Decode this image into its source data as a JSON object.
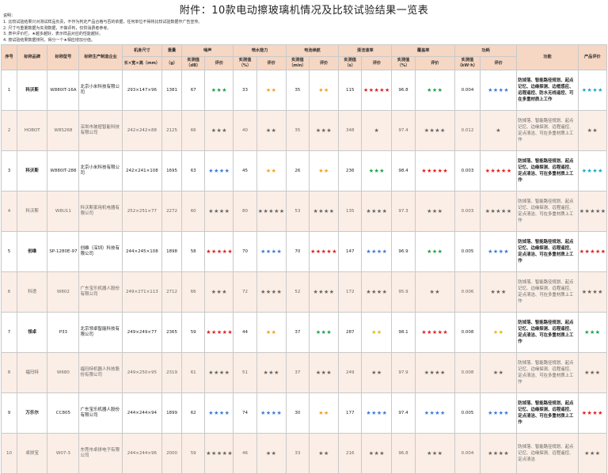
{
  "title": "附件：10款电动擦玻璃机情况及比较试验结果一览表",
  "notes": [
    "说明：",
    "1. 比较试验结果只对测试样品负责，不作为判定产品合格与否的依据，任何单位不得将比较试验数据作广告宣传。",
    "2. 尺寸与重量数据为实测数据，不做评判，仅供消费者参考。",
    "3. 表中评价栏，★越多越好，表示样品对应的性能越好。",
    "4. 按试验结果数据排列，得分一个★相应增加分值。"
  ],
  "headers": {
    "seq": "序号",
    "brand": "标称品牌",
    "model": "标称型号",
    "maker": "标称生产制造企业",
    "size": "机身尺寸",
    "size_sub": "长×宽×高（mm）",
    "weight": "重量",
    "weight_sub": "（g）",
    "noise": "噪声",
    "spray": "喷水能力",
    "battery": "电池续航",
    "clean_time": "清洁速率",
    "cover": "覆盖率",
    "power": "功耗",
    "func": "功能",
    "eval": "产品评价",
    "measured": "实测值",
    "measured_noise": "实测值（dB）",
    "measured_spray": "实测值（%）",
    "measured_battery": "实测值（min）",
    "measured_clean": "实测值（s）",
    "measured_cover": "实测值（%）",
    "measured_power": "实测值（kW·h）",
    "rating": "评价"
  },
  "rows": [
    {
      "seq": "1",
      "brand": "科沃斯",
      "model": "W880IT-16A",
      "maker": "北京小米科技有限公司",
      "size": "293×147×96",
      "weight": "1381",
      "noise": "67",
      "noise_r": "★★★",
      "noise_c": "green",
      "spray": "33",
      "spray_r": "★★",
      "spray_c": "orange",
      "battery": "35",
      "battery_r": "★★",
      "battery_c": "orange",
      "clean": "115",
      "clean_r": "★★★★★",
      "clean_c": "red",
      "cover": "96.8",
      "cover_r": "★★★",
      "cover_c": "green",
      "power": "0.004",
      "power_r": "★★★★",
      "power_c": "blue",
      "func": "防掉落、智能路径规划、起点记忆、边缘探测、边框感应、远程遥控、防水无线遥控、可在多重材质上工作",
      "eval": "★★★★",
      "eval_c": "cyan"
    },
    {
      "seq": "2",
      "brand": "HOBOT",
      "model": "W8S268",
      "maker": "深圳市玻妞智能科技有限公司",
      "size": "242×242×88",
      "weight": "2125",
      "noise": "66",
      "noise_r": "★★★",
      "noise_c": "green",
      "spray": "40",
      "spray_r": "★★",
      "spray_c": "orange",
      "battery": "35",
      "battery_r": "★★★",
      "battery_c": "green",
      "clean": "348",
      "clean_r": "★",
      "clean_c": "black",
      "cover": "97.4",
      "cover_r": "★★★★",
      "cover_c": "blue",
      "power": "0.012",
      "power_r": "★",
      "power_c": "black",
      "func": "防掉落、智能路径规划、起点记忆、边缘探测、远程遥控、定点清洁、可在多重材质上工作",
      "eval": "★★",
      "eval_c": "orange"
    },
    {
      "seq": "3",
      "brand": "科沃斯",
      "model": "W880IT-288",
      "maker": "北京小米科技有限公司",
      "size": "242×241×108",
      "weight": "1695",
      "noise": "63",
      "noise_r": "★★★★",
      "noise_c": "blue",
      "spray": "45",
      "spray_r": "★★",
      "spray_c": "orange",
      "battery": "26",
      "battery_r": "★★",
      "battery_c": "orange",
      "clean": "236",
      "clean_r": "★★★",
      "clean_c": "green",
      "cover": "98.4",
      "cover_r": "★★★★★",
      "cover_c": "red",
      "power": "0.003",
      "power_r": "★★★★★",
      "power_c": "red",
      "func": "防掉落、智能路径规划、起点记忆、边缘探测、远程遥控、定点清洁、可在多重材质上工作",
      "eval": "★★★★",
      "eval_c": "cyan"
    },
    {
      "seq": "4",
      "brand": "科沃斯",
      "model": "W8U11",
      "maker": "科沃斯家用机电器有限公司",
      "size": "252×251×77",
      "weight": "2272",
      "noise": "60",
      "noise_r": "★★★★",
      "noise_c": "blue",
      "spray": "80",
      "spray_r": "★★★★★",
      "spray_c": "red",
      "battery": "53",
      "battery_r": "★★★★",
      "battery_c": "blue",
      "clean": "135",
      "clean_r": "★★★★",
      "clean_c": "blue",
      "cover": "97.3",
      "cover_r": "★★★",
      "cover_c": "green",
      "power": "0.003",
      "power_r": "★★★★★",
      "power_c": "red",
      "func": "防掉落、智能路径规划、起点记忆、边缘探测、远程遥控、定点清洁、可在多重材质上工作",
      "eval": "★★★★★",
      "eval_c": "red"
    },
    {
      "seq": "5",
      "brand": "创维",
      "model": "SP-1280E-97",
      "maker": "创维（深圳）科技有限公司",
      "size": "244×245×108",
      "weight": "1898",
      "noise": "58",
      "noise_r": "★★★★★",
      "noise_c": "red",
      "spray": "70",
      "spray_r": "★★★★",
      "spray_c": "blue",
      "battery": "70",
      "battery_r": "★★★★★",
      "battery_c": "red",
      "clean": "147",
      "clean_r": "★★★★",
      "clean_c": "blue",
      "cover": "96.9",
      "cover_r": "★★★",
      "cover_c": "green",
      "power": "0.005",
      "power_r": "★★★★",
      "power_c": "blue",
      "func": "防掉落、智能路径规划、起点记忆、边缘探测、远程遥控、定点清洁、可在多重材质上工作",
      "eval": "★★★★★",
      "eval_c": "red"
    },
    {
      "seq": "6",
      "brand": "科语",
      "model": "W802",
      "maker": "广东宝乐机器人股份有限公司",
      "size": "249×271×113",
      "weight": "2712",
      "noise": "66",
      "noise_r": "★★★",
      "noise_c": "green",
      "spray": "72",
      "spray_r": "★★★★",
      "spray_c": "blue",
      "battery": "52",
      "battery_r": "★★★★",
      "battery_c": "blue",
      "clean": "172",
      "clean_r": "★★★★",
      "clean_c": "blue",
      "cover": "95.9",
      "cover_r": "★★",
      "cover_c": "yellow",
      "power": "0.006",
      "power_r": "★★★",
      "power_c": "green",
      "func": "防掉落、智能路径规划、起点记忆、边缘探测、远程遥控、定点清洁、可在多重材质上工作",
      "eval": "★★★★",
      "eval_c": "blue"
    },
    {
      "seq": "7",
      "brand": "领卓",
      "model": "P33",
      "maker": "北京领卓智能科技有限公司",
      "size": "249×249×77",
      "weight": "2365",
      "noise": "59",
      "noise_r": "★★★★★",
      "noise_c": "red",
      "spray": "44",
      "spray_r": "★★",
      "spray_c": "orange",
      "battery": "37",
      "battery_r": "★★★",
      "battery_c": "green",
      "clean": "287",
      "clean_r": "★★",
      "clean_c": "yellow",
      "cover": "98.1",
      "cover_r": "★★★★★",
      "cover_c": "red",
      "power": "0.008",
      "power_r": "★★",
      "power_c": "yellow",
      "func": "防掉落、智能路径规划、起点记忆、边缘探测、远程遥控、定点清洁、可在多重材质上工作",
      "eval": "★★★",
      "eval_c": "green"
    },
    {
      "seq": "8",
      "brand": "福玛特",
      "model": "W680",
      "maker": "福玛特机器人科技股份有限公司",
      "size": "249×250×95",
      "weight": "2319",
      "noise": "61",
      "noise_r": "★★★★",
      "noise_c": "blue",
      "spray": "51",
      "spray_r": "★★★",
      "spray_c": "green",
      "battery": "37",
      "battery_r": "★★★",
      "battery_c": "green",
      "clean": "249",
      "clean_r": "★★",
      "clean_c": "yellow",
      "cover": "97.9",
      "cover_r": "★★★★",
      "cover_c": "blue",
      "power": "0.008",
      "power_r": "★★",
      "power_c": "yellow",
      "func": "防掉落、智能路径规划、起点记忆、边缘探测、远程遥控、定点清洁、可在多重材质上工作",
      "eval": "★★★",
      "eval_c": "green"
    },
    {
      "seq": "9",
      "brand": "万乐尔",
      "model": "CC805",
      "maker": "广东宝乐机器人股份有限公司",
      "size": "244×244×94",
      "weight": "1899",
      "noise": "62",
      "noise_r": "★★★★",
      "noise_c": "blue",
      "spray": "74",
      "spray_r": "★★★★",
      "spray_c": "blue",
      "battery": "30",
      "battery_r": "★★",
      "battery_c": "orange",
      "clean": "177",
      "clean_r": "★★★★",
      "clean_c": "blue",
      "cover": "97.4",
      "cover_r": "★★★★",
      "cover_c": "blue",
      "power": "0.005",
      "power_r": "★★★★",
      "power_c": "blue",
      "func": "防掉落、智能路径规划、起点记忆、边缘探测、远程遥控、定点清洁、可在多重材质上工作",
      "eval": "★★★★",
      "eval_c": "red"
    },
    {
      "seq": "10",
      "brand": "卓拼宝",
      "model": "W07-3",
      "maker": "东莞市卓拼电子有限公司",
      "size": "244×244×96",
      "weight": "2000",
      "noise": "59",
      "noise_r": "★★★★★",
      "noise_c": "red",
      "spray": "46",
      "spray_r": "★★",
      "spray_c": "orange",
      "battery": "33",
      "battery_r": "★★",
      "battery_c": "orange",
      "clean": "216",
      "clean_r": "★★★",
      "clean_c": "green",
      "cover": "96.8",
      "cover_r": "★★★",
      "cover_c": "green",
      "power": "0.004",
      "power_r": "★★★★",
      "power_c": "blue",
      "func": "防掉落、智能路径规划、起点记忆、边缘探测、远程遥控、定点清洁",
      "eval": "★★★",
      "eval_c": "green"
    }
  ]
}
